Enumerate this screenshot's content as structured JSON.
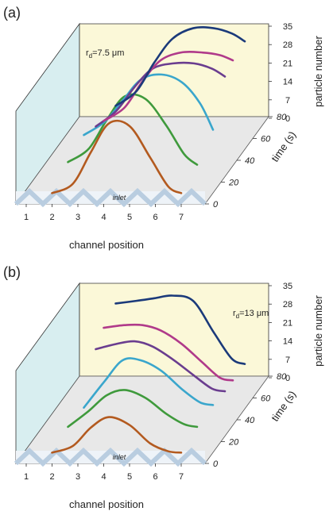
{
  "panels": [
    {
      "label": "(a)",
      "annotation": "7.5 μm",
      "annotation_sub": "d",
      "annotation_prefix": "r",
      "inlet_label": "inlet"
    },
    {
      "label": "(b)",
      "annotation": "13 μm",
      "annotation_sub": "d",
      "annotation_prefix": "r",
      "inlet_label": "inlet"
    }
  ],
  "axes": {
    "x_title": "channel position",
    "y_title": "particle number",
    "z_title": "time (s)",
    "x_ticks": [
      "1",
      "2",
      "3",
      "4",
      "5",
      "6",
      "7"
    ],
    "y_ticks": [
      "0",
      "7",
      "14",
      "21",
      "28",
      "35"
    ],
    "z_ticks": [
      "0",
      "20",
      "40",
      "60",
      "80"
    ]
  },
  "colors": {
    "wall": "#d8eef0",
    "back_wall": "#fbf8d8",
    "floor": "#e8e8e8",
    "inlet_band": "#b9cde0",
    "inlet_text": "#cc2222"
  },
  "chart_data": [
    {
      "type": "line",
      "title": "",
      "xlabel": "channel position",
      "ylabel": "particle number",
      "zlabel": "time (s)",
      "xlim": [
        1,
        7
      ],
      "ylim": [
        0,
        35
      ],
      "zlim": [
        0,
        80
      ],
      "series": [
        {
          "color": "#b35a1f",
          "time": 0,
          "x": [
            2,
            2.8,
            3.5,
            4.2,
            5.0,
            5.8,
            6.5,
            7.0
          ],
          "values": [
            0.5,
            4,
            16,
            27,
            26,
            14,
            3,
            0.5
          ]
        },
        {
          "color": "#3f9a3c",
          "time": 20,
          "x": [
            2,
            2.8,
            3.5,
            4.2,
            5.0,
            5.8,
            6.5,
            7.0
          ],
          "values": [
            4,
            9,
            20,
            29,
            28,
            18,
            7,
            3
          ]
        },
        {
          "color": "#3aa6cc",
          "time": 40,
          "x": [
            2,
            2.8,
            3.5,
            4.2,
            5.0,
            5.8,
            6.5,
            7.0
          ],
          "values": [
            6,
            11,
            19,
            27,
            29,
            26,
            18,
            8
          ]
        },
        {
          "color": "#6a3d8f",
          "time": 55,
          "x": [
            2,
            2.8,
            3.5,
            4.2,
            5.0,
            5.8,
            6.5,
            7.0
          ],
          "values": [
            3,
            9,
            18,
            25,
            27,
            27,
            25,
            22
          ]
        },
        {
          "color": "#b03a8a",
          "time": 65,
          "x": [
            2,
            2.8,
            3.5,
            4.2,
            5.0,
            5.8,
            6.5,
            7.0
          ],
          "values": [
            1,
            6,
            16,
            24,
            27,
            27,
            26,
            24
          ]
        },
        {
          "color": "#1b3a7a",
          "time": 80,
          "x": [
            2,
            2.8,
            3.5,
            4.2,
            5.0,
            5.8,
            6.5,
            7.0
          ],
          "values": [
            0.5,
            6,
            17,
            26,
            30,
            30,
            28,
            25
          ]
        }
      ]
    },
    {
      "type": "line",
      "title": "",
      "xlabel": "channel position",
      "ylabel": "particle number",
      "zlabel": "time (s)",
      "xlim": [
        1,
        7
      ],
      "ylim": [
        0,
        35
      ],
      "zlim": [
        0,
        80
      ],
      "series": [
        {
          "color": "#b35a1f",
          "time": 0,
          "x": [
            2,
            2.8,
            3.5,
            4.2,
            5.0,
            5.8,
            6.5,
            7.0
          ],
          "values": [
            0.5,
            3,
            10,
            14,
            11,
            4,
            1,
            0.5
          ]
        },
        {
          "color": "#3f9a3c",
          "time": 20,
          "x": [
            2,
            2.8,
            3.5,
            4.2,
            5.0,
            5.8,
            6.5,
            7.0
          ],
          "values": [
            2,
            8,
            14,
            16,
            13,
            7,
            3,
            2
          ]
        },
        {
          "color": "#3aa6cc",
          "time": 40,
          "x": [
            2,
            2.8,
            3.5,
            4.2,
            5.0,
            5.8,
            6.5,
            7.0
          ],
          "values": [
            1,
            11,
            19,
            19,
            15,
            8,
            3,
            2
          ]
        },
        {
          "color": "#6a3d8f",
          "time": 55,
          "x": [
            2,
            2.8,
            3.5,
            4.2,
            5.0,
            5.8,
            6.5,
            7.0
          ],
          "values": [
            17,
            19,
            20,
            18,
            13,
            7,
            2,
            1
          ]
        },
        {
          "color": "#b03a8a",
          "time": 65,
          "x": [
            2,
            2.8,
            3.5,
            4.2,
            5.0,
            5.8,
            6.5,
            7.0
          ],
          "values": [
            21,
            22,
            22,
            20,
            15,
            8,
            2,
            1
          ]
        },
        {
          "color": "#1b3a7a",
          "time": 80,
          "x": [
            2,
            2.8,
            3.5,
            4.2,
            5.0,
            5.8,
            6.5,
            7.0
          ],
          "values": [
            24,
            25,
            26,
            27,
            25,
            13,
            3,
            1
          ]
        }
      ]
    }
  ]
}
